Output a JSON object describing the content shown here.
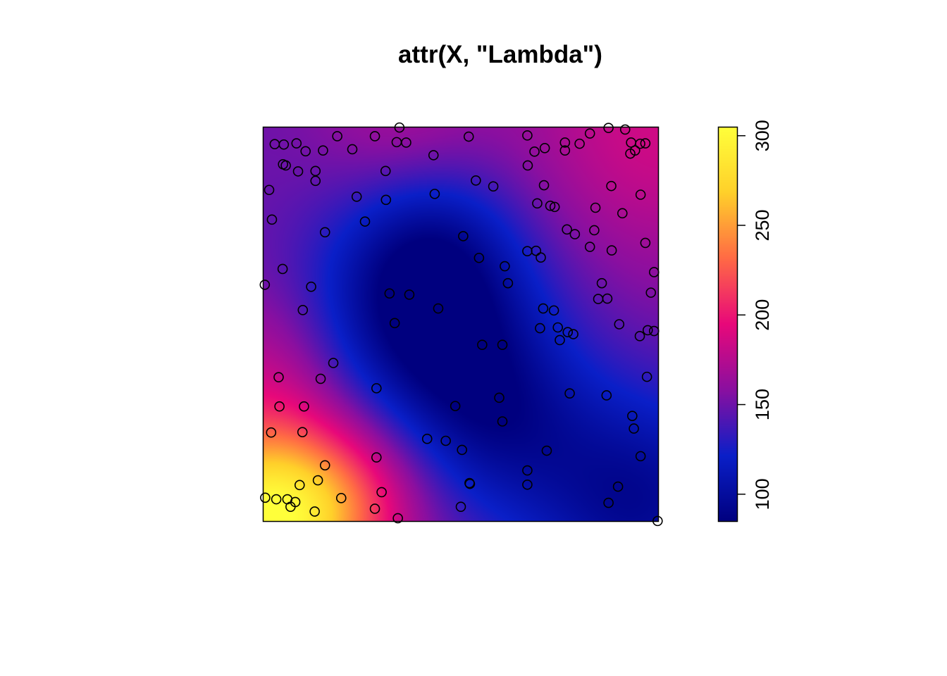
{
  "chart_data": {
    "type": "heatmap",
    "title": "attr(X, \"Lambda\")",
    "xlabel": "",
    "ylabel": "",
    "xlim": [
      0,
      1
    ],
    "ylim": [
      0,
      1
    ],
    "colorbar": {
      "range": [
        85,
        305
      ],
      "ticks": [
        100,
        150,
        200,
        250,
        300
      ],
      "tick_labels": [
        "100",
        "150",
        "200",
        "250",
        "300"
      ],
      "palette": [
        "#00007F",
        "#0A1FC8",
        "#8A0FA0",
        "#E8087A",
        "#FF6A45",
        "#FFD02A",
        "#FFFF3A"
      ]
    },
    "intensity_field": {
      "base": 150,
      "components": [
        {
          "cx": 0.0,
          "cy": 0.0,
          "amp": 150,
          "sigma": 0.17
        },
        {
          "cx": 0.0,
          "cy": 0.38,
          "amp": 25,
          "sigma": 0.15
        },
        {
          "cx": 0.22,
          "cy": 0.06,
          "amp": 35,
          "sigma": 0.14
        },
        {
          "cx": 0.42,
          "cy": 0.52,
          "amp": -70,
          "sigma": 0.2
        },
        {
          "cx": 0.6,
          "cy": 0.25,
          "amp": -40,
          "sigma": 0.17
        },
        {
          "cx": 0.42,
          "cy": 0.72,
          "amp": -25,
          "sigma": 0.15
        },
        {
          "cx": 0.95,
          "cy": 0.05,
          "amp": -55,
          "sigma": 0.2
        },
        {
          "cx": 1.0,
          "cy": 1.0,
          "amp": 35,
          "sigma": 0.25
        },
        {
          "cx": 0.35,
          "cy": 1.0,
          "amp": 20,
          "sigma": 0.15
        }
      ]
    },
    "points": [
      [
        0.345,
        0.998
      ],
      [
        0.873,
        0.997
      ],
      [
        0.188,
        0.976
      ],
      [
        0.283,
        0.976
      ],
      [
        0.668,
        0.978
      ],
      [
        0.915,
        0.993
      ],
      [
        0.52,
        0.975
      ],
      [
        0.826,
        0.983
      ],
      [
        0.03,
        0.956
      ],
      [
        0.053,
        0.955
      ],
      [
        0.085,
        0.958
      ],
      [
        0.108,
        0.938
      ],
      [
        0.152,
        0.94
      ],
      [
        0.226,
        0.943
      ],
      [
        0.338,
        0.961
      ],
      [
        0.362,
        0.96
      ],
      [
        0.712,
        0.946
      ],
      [
        0.686,
        0.937
      ],
      [
        0.763,
        0.96
      ],
      [
        0.8,
        0.957
      ],
      [
        0.763,
        0.94
      ],
      [
        0.93,
        0.96
      ],
      [
        0.953,
        0.957
      ],
      [
        0.94,
        0.94
      ],
      [
        0.928,
        0.932
      ],
      [
        0.966,
        0.958
      ],
      [
        0.431,
        0.928
      ],
      [
        0.051,
        0.905
      ],
      [
        0.058,
        0.902
      ],
      [
        0.089,
        0.887
      ],
      [
        0.133,
        0.888
      ],
      [
        0.133,
        0.863
      ],
      [
        0.31,
        0.888
      ],
      [
        0.669,
        0.902
      ],
      [
        0.538,
        0.864
      ],
      [
        0.016,
        0.84
      ],
      [
        0.237,
        0.823
      ],
      [
        0.311,
        0.815
      ],
      [
        0.434,
        0.83
      ],
      [
        0.582,
        0.849
      ],
      [
        0.71,
        0.852
      ],
      [
        0.88,
        0.85
      ],
      [
        0.954,
        0.828
      ],
      [
        0.693,
        0.806
      ],
      [
        0.023,
        0.765
      ],
      [
        0.258,
        0.76
      ],
      [
        0.157,
        0.733
      ],
      [
        0.506,
        0.723
      ],
      [
        0.726,
        0.8
      ],
      [
        0.737,
        0.797
      ],
      [
        0.768,
        0.74
      ],
      [
        0.788,
        0.728
      ],
      [
        0.84,
        0.795
      ],
      [
        0.837,
        0.738
      ],
      [
        0.908,
        0.781
      ],
      [
        0.69,
        0.686
      ],
      [
        0.611,
        0.647
      ],
      [
        0.05,
        0.64
      ],
      [
        0.668,
        0.685
      ],
      [
        0.546,
        0.668
      ],
      [
        0.702,
        0.669
      ],
      [
        0.826,
        0.696
      ],
      [
        0.881,
        0.687
      ],
      [
        0.966,
        0.706
      ],
      [
        0.005,
        0.6
      ],
      [
        0.122,
        0.595
      ],
      [
        0.32,
        0.578
      ],
      [
        0.37,
        0.575
      ],
      [
        0.619,
        0.604
      ],
      [
        0.988,
        0.632
      ],
      [
        0.856,
        0.604
      ],
      [
        0.847,
        0.564
      ],
      [
        0.87,
        0.565
      ],
      [
        0.98,
        0.58
      ],
      [
        0.101,
        0.536
      ],
      [
        0.443,
        0.54
      ],
      [
        0.708,
        0.54
      ],
      [
        0.735,
        0.535
      ],
      [
        0.333,
        0.503
      ],
      [
        0.7,
        0.49
      ],
      [
        0.745,
        0.492
      ],
      [
        0.77,
        0.48
      ],
      [
        0.75,
        0.46
      ],
      [
        0.952,
        0.47
      ],
      [
        0.9,
        0.5
      ],
      [
        0.972,
        0.485
      ],
      [
        0.784,
        0.475
      ],
      [
        0.988,
        0.483
      ],
      [
        0.554,
        0.448
      ],
      [
        0.605,
        0.448
      ],
      [
        0.178,
        0.402
      ],
      [
        0.04,
        0.366
      ],
      [
        0.146,
        0.362
      ],
      [
        0.287,
        0.338
      ],
      [
        0.775,
        0.325
      ],
      [
        0.97,
        0.367
      ],
      [
        0.042,
        0.292
      ],
      [
        0.104,
        0.292
      ],
      [
        0.486,
        0.293
      ],
      [
        0.597,
        0.314
      ],
      [
        0.868,
        0.32
      ],
      [
        0.021,
        0.226
      ],
      [
        0.1,
        0.227
      ],
      [
        0.605,
        0.254
      ],
      [
        0.933,
        0.268
      ],
      [
        0.937,
        0.236
      ],
      [
        0.415,
        0.21
      ],
      [
        0.462,
        0.205
      ],
      [
        0.503,
        0.182
      ],
      [
        0.717,
        0.18
      ],
      [
        0.287,
        0.163
      ],
      [
        0.954,
        0.166
      ],
      [
        0.157,
        0.143
      ],
      [
        0.139,
        0.105
      ],
      [
        0.093,
        0.093
      ],
      [
        0.522,
        0.098
      ],
      [
        0.523,
        0.096
      ],
      [
        0.668,
        0.13
      ],
      [
        0.668,
        0.094
      ],
      [
        0.897,
        0.089
      ],
      [
        0.006,
        0.061
      ],
      [
        0.034,
        0.057
      ],
      [
        0.062,
        0.057
      ],
      [
        0.082,
        0.05
      ],
      [
        0.07,
        0.038
      ],
      [
        0.198,
        0.06
      ],
      [
        0.3,
        0.075
      ],
      [
        0.283,
        0.033
      ],
      [
        0.131,
        0.026
      ],
      [
        0.5,
        0.038
      ],
      [
        0.341,
        0.009
      ],
      [
        0.873,
        0.048
      ],
      [
        0.997,
        0.002
      ]
    ]
  }
}
